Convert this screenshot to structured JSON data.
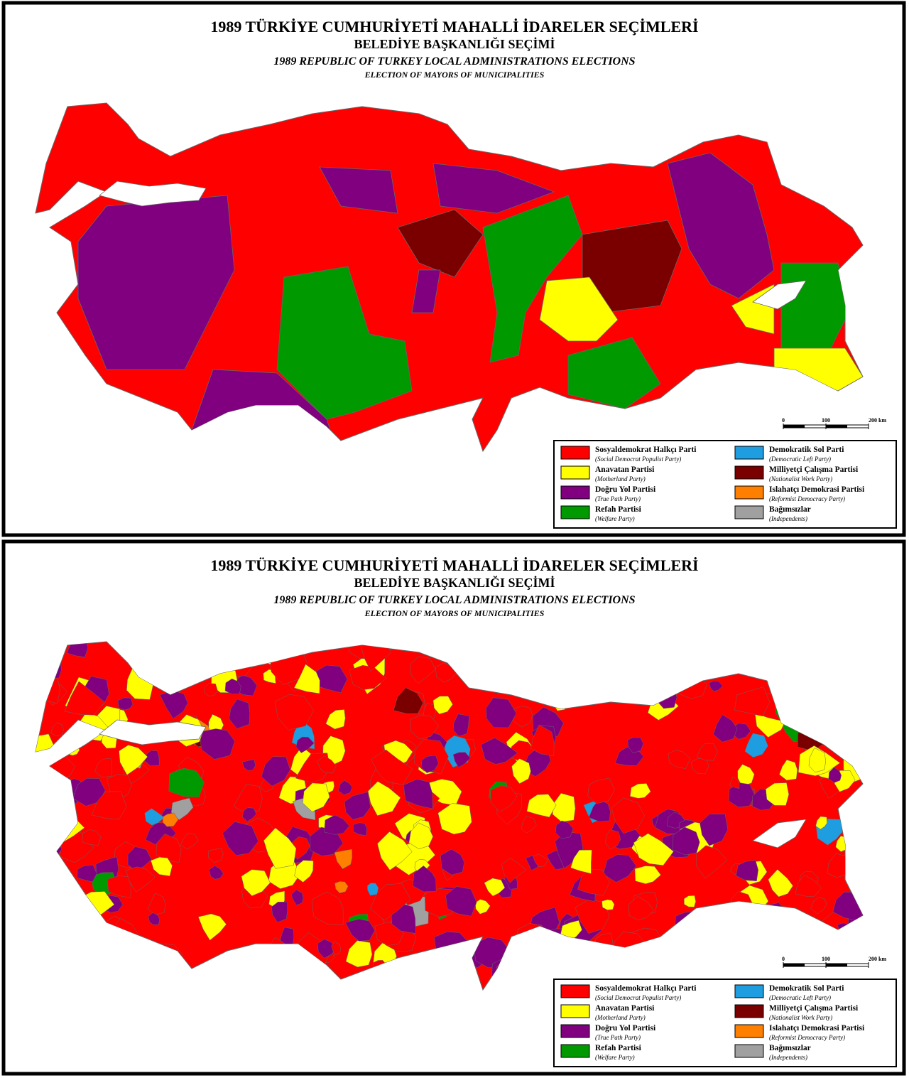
{
  "header": {
    "title": "1989 TÜRKİYE CUMHURİYETİ MAHALLİ İDARELER SEÇİMLERİ",
    "subtitle": "BELEDİYE BAŞKANLIĞI SEÇİMİ",
    "title_en": "1989 REPUBLIC OF TURKEY LOCAL ADMINISTRATIONS ELECTIONS",
    "subtitle_en": "ELECTION OF MAYORS OF MUNICIPALITIES"
  },
  "legend": [
    {
      "name": "Sosyaldemokrat Halkçı Parti",
      "english": "(Social Democrat Populist Party)",
      "color": "#ff0000"
    },
    {
      "name": "Anavatan Partisi",
      "english": "(Motherland Party)",
      "color": "#ffff00"
    },
    {
      "name": "Doğru Yol Partisi",
      "english": "(True Path Party)",
      "color": "#800080"
    },
    {
      "name": "Refah Partisi",
      "english": "(Welfare Party)",
      "color": "#009900"
    },
    {
      "name": "Demokratik Sol Parti",
      "english": "(Democratic Left Party)",
      "color": "#1e9de0"
    },
    {
      "name": "Milliyetçi Çalışma Partisi",
      "english": "(Nationalist Work Party)",
      "color": "#7a0000"
    },
    {
      "name": "Islahatçı Demokrasi Partisi",
      "english": "(Reformist Democracy Party)",
      "color": "#ff7f00"
    },
    {
      "name": "Bağımsızlar",
      "english": "(Independents)",
      "color": "#a0a0a0"
    }
  ],
  "scale": {
    "ticks": [
      {
        "value": 0,
        "label": "0"
      },
      {
        "value": 100,
        "label": "100"
      },
      {
        "value": 200,
        "label": "200 km"
      }
    ]
  }
}
